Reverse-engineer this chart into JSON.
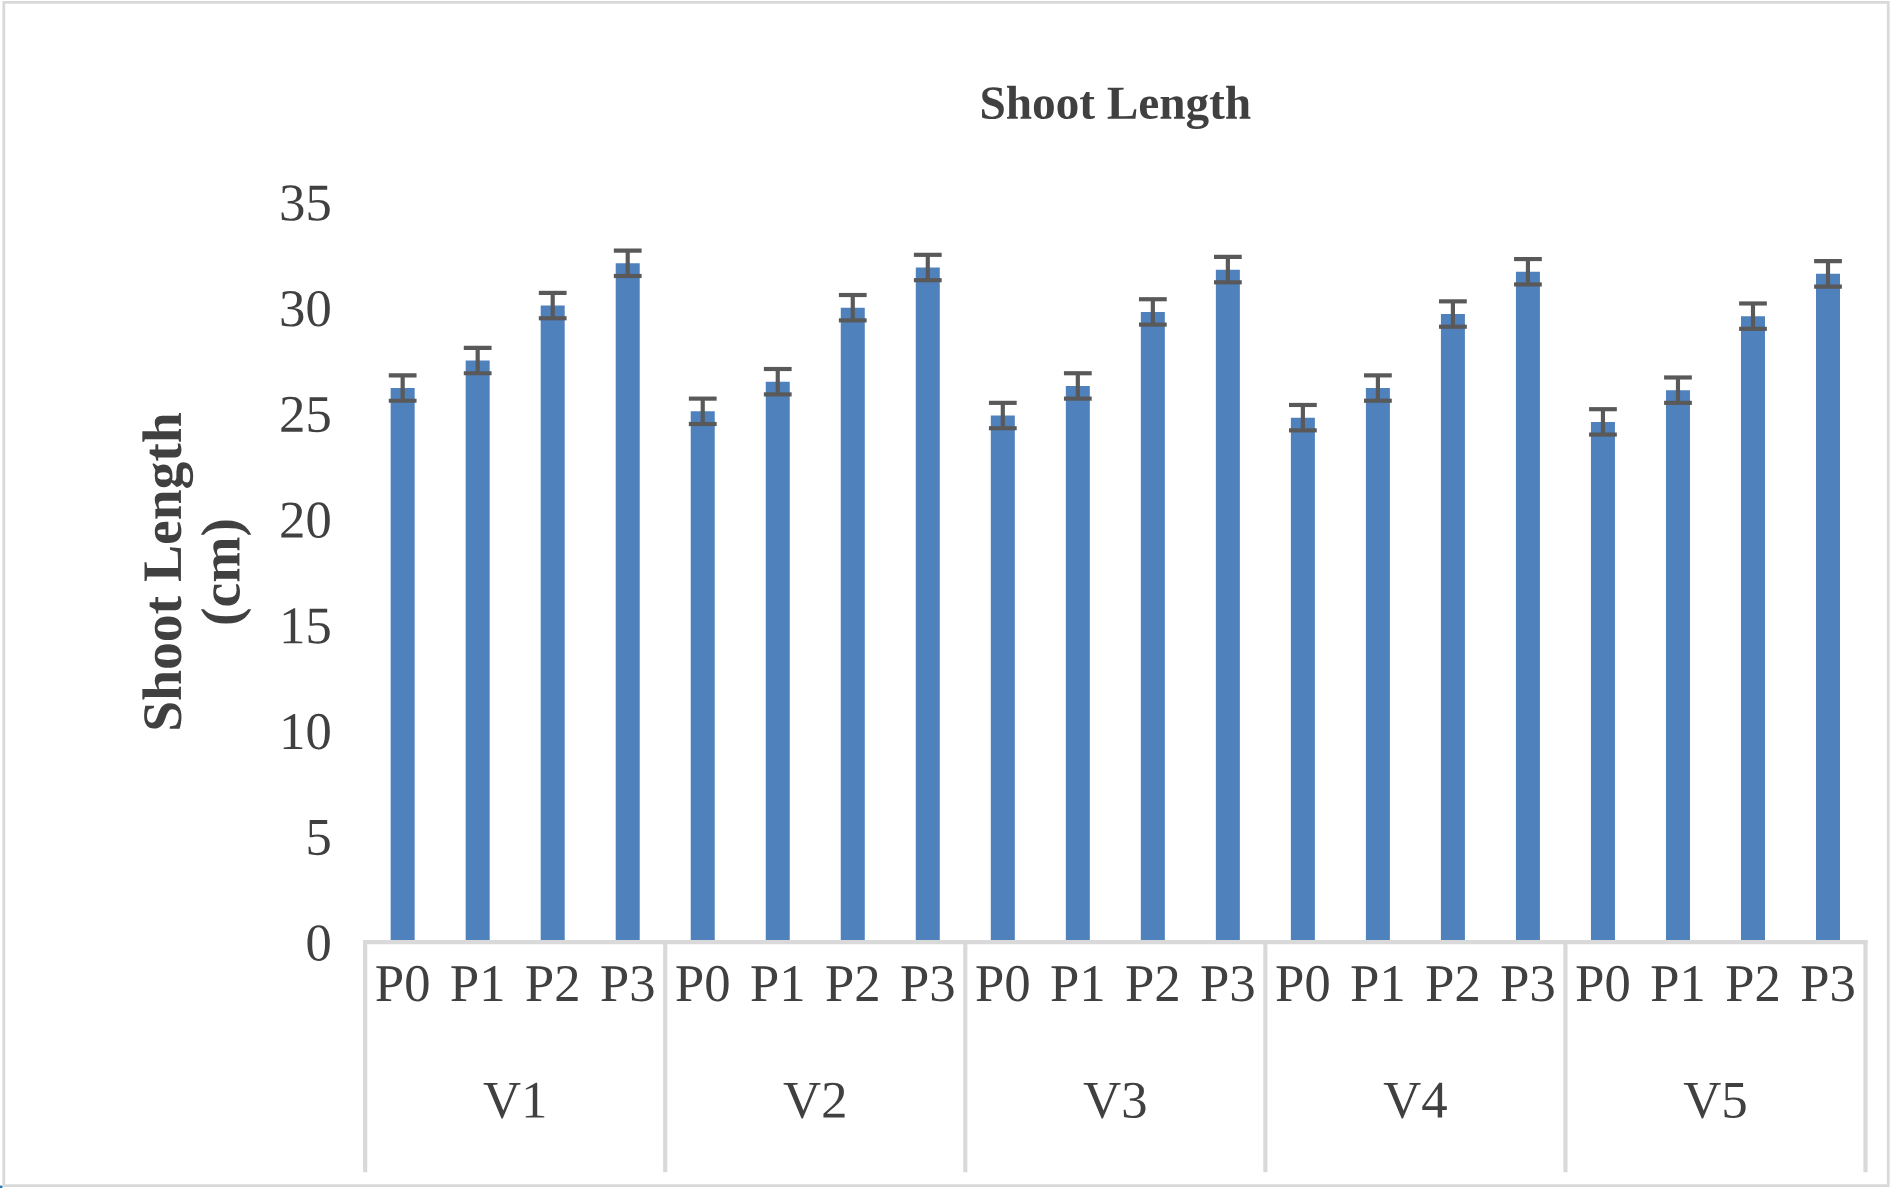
{
  "chart_data": {
    "type": "bar",
    "title": "Shoot Length",
    "ylabel": "Shoot Length\n(cm)",
    "categories": [
      "P0",
      "P1",
      "P2",
      "P3",
      "P0",
      "P1",
      "P2",
      "P3",
      "P0",
      "P1",
      "P2",
      "P3",
      "P0",
      "P1",
      "P2",
      "P3",
      "P0",
      "P1",
      "P2",
      "P3"
    ],
    "values": [
      26.2,
      27.5,
      30.1,
      32.1,
      25.1,
      26.5,
      30.0,
      31.9,
      24.9,
      26.3,
      29.8,
      31.8,
      24.8,
      26.2,
      29.7,
      31.7,
      24.6,
      26.1,
      29.6,
      31.6
    ],
    "errors": [
      0.6,
      0.6,
      0.6,
      0.6,
      0.6,
      0.6,
      0.6,
      0.6,
      0.6,
      0.6,
      0.6,
      0.6,
      0.6,
      0.6,
      0.6,
      0.6,
      0.6,
      0.6,
      0.6,
      0.6
    ],
    "color": "#4f81bd",
    "ylim": [
      0,
      35
    ],
    "yticks": [
      0,
      5,
      10,
      15,
      20,
      25,
      30,
      35
    ],
    "grid": false,
    "annotations": [
      "V1",
      "V2",
      "V3",
      "V4",
      "V5"
    ]
  }
}
